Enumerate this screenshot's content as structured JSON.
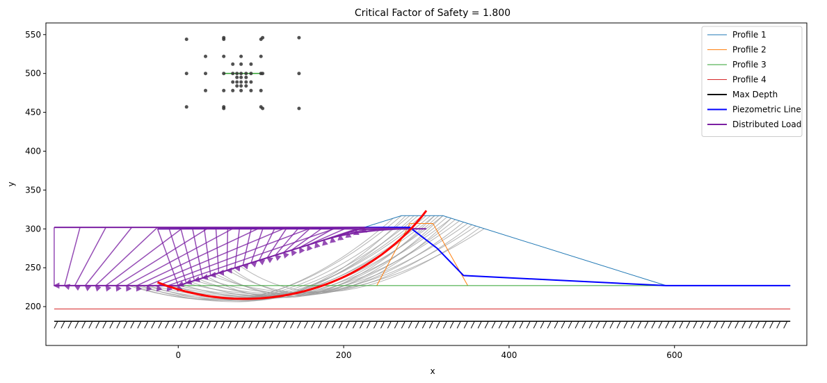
{
  "chart_data": {
    "type": "line",
    "title": "Critical Factor of Safety = 1.800",
    "xlabel": "x",
    "ylabel": "y",
    "xlim": [
      -160,
      760
    ],
    "ylim": [
      150,
      565
    ],
    "xticks": [
      0,
      200,
      400,
      600
    ],
    "xtick_labels": [
      "0",
      "200",
      "400",
      "600"
    ],
    "yticks": [
      200,
      250,
      300,
      350,
      400,
      450,
      500,
      550
    ],
    "ytick_labels": [
      "200",
      "250",
      "300",
      "350",
      "400",
      "450",
      "500",
      "550"
    ],
    "grid": false,
    "legend_position": "top-right",
    "colors": {
      "profile_1": "#1f77b4",
      "profile_2": "#ff7f0e",
      "profile_3": "#2ca02c",
      "profile_4": "#d62728",
      "max_depth": "#000000",
      "piezometric": "#0000ff",
      "distributed_load": "#7b1fa2",
      "trial_surface": "#999999",
      "critical_surface": "#ff0000",
      "grid_point": "#333333"
    },
    "legend": [
      {
        "key": "profile_1",
        "label": "Profile 1"
      },
      {
        "key": "profile_2",
        "label": "Profile 2"
      },
      {
        "key": "profile_3",
        "label": "Profile 3"
      },
      {
        "key": "profile_4",
        "label": "Profile 4"
      },
      {
        "key": "max_depth",
        "label": "Max Depth"
      },
      {
        "key": "piezometric",
        "label": "Piezometric Line"
      },
      {
        "key": "distributed_load",
        "label": "Distributed Load"
      }
    ],
    "series": [
      {
        "key": "profile_1",
        "x": [
          -150,
          0,
          270,
          320,
          590,
          740
        ],
        "y": [
          227,
          227,
          317,
          317,
          227,
          227
        ]
      },
      {
        "key": "profile_2",
        "x": [
          240,
          280,
          308,
          350
        ],
        "y": [
          227,
          307,
          307,
          227
        ]
      },
      {
        "key": "profile_3",
        "x": [
          -150,
          740
        ],
        "y": [
          227,
          227
        ]
      },
      {
        "key": "profile_4",
        "x": [
          -150,
          740
        ],
        "y": [
          197,
          197
        ]
      },
      {
        "key": "max_depth",
        "x": [
          -150,
          740
        ],
        "y": [
          181,
          181
        ]
      },
      {
        "key": "piezometric",
        "x": [
          -25,
          225,
          280,
          313,
          345,
          590,
          740
        ],
        "y": [
          300,
          302,
          302,
          275,
          240,
          227,
          227
        ]
      }
    ],
    "distributed_loads": [
      {
        "x_start": -150,
        "x_end": 225,
        "x_top": [
          -150,
          225
        ],
        "y_top": [
          302,
          302
        ],
        "x_bottom": [
          -150,
          0
        ],
        "y_bottom": [
          227,
          227
        ],
        "n_arrows": 13
      },
      {
        "x_start": -25,
        "x_end": 300,
        "x_top": [
          -25,
          300
        ],
        "y_top": [
          300,
          300
        ],
        "x_bottom": [
          0,
          225
        ],
        "y_bottom": [
          227,
          302
        ],
        "n_arrows": 24
      }
    ],
    "grid_points": [
      [
        10,
        544
      ],
      [
        55,
        546
      ],
      [
        55,
        544
      ],
      [
        100,
        544
      ],
      [
        102,
        546
      ],
      [
        146,
        546
      ],
      [
        33,
        522
      ],
      [
        55,
        522
      ],
      [
        76,
        522
      ],
      [
        100,
        522
      ],
      [
        66,
        512
      ],
      [
        76,
        512
      ],
      [
        88,
        512
      ],
      [
        10,
        500
      ],
      [
        33,
        500
      ],
      [
        55,
        500
      ],
      [
        66,
        500
      ],
      [
        71,
        500
      ],
      [
        76,
        500
      ],
      [
        82,
        500
      ],
      [
        88,
        500
      ],
      [
        100,
        500
      ],
      [
        102,
        500
      ],
      [
        146,
        500
      ],
      [
        71,
        495
      ],
      [
        76,
        495
      ],
      [
        82,
        495
      ],
      [
        66,
        489
      ],
      [
        71,
        489
      ],
      [
        76,
        489
      ],
      [
        82,
        489
      ],
      [
        88,
        489
      ],
      [
        71,
        484
      ],
      [
        76,
        484
      ],
      [
        82,
        484
      ],
      [
        33,
        478
      ],
      [
        55,
        478
      ],
      [
        66,
        478
      ],
      [
        76,
        478
      ],
      [
        88,
        478
      ],
      [
        100,
        478
      ],
      [
        10,
        457
      ],
      [
        55,
        457
      ],
      [
        55,
        455
      ],
      [
        100,
        457
      ],
      [
        102,
        455
      ],
      [
        146,
        455
      ]
    ],
    "critical_surface": {
      "center": [
        80,
        480
      ],
      "radius": 270,
      "x": [
        -25,
        300
      ],
      "factor_of_safety": 1.8
    },
    "trial_surfaces": [
      {
        "x1": -60,
        "x2": 270,
        "sag": 40
      },
      {
        "x1": -50,
        "x2": 280,
        "sag": 38
      },
      {
        "x1": -40,
        "x2": 290,
        "sag": 36
      },
      {
        "x1": -30,
        "x2": 300,
        "sag": 34
      },
      {
        "x1": -20,
        "x2": 310,
        "sag": 32
      },
      {
        "x1": -10,
        "x2": 320,
        "sag": 30
      },
      {
        "x1": 0,
        "x2": 330,
        "sag": 28
      },
      {
        "x1": 10,
        "x2": 340,
        "sag": 26
      },
      {
        "x1": 20,
        "x2": 350,
        "sag": 24
      },
      {
        "x1": 30,
        "x2": 360,
        "sag": 22
      },
      {
        "x1": 40,
        "x2": 370,
        "sag": 20
      },
      {
        "x1": -45,
        "x2": 295,
        "sag": 46
      },
      {
        "x1": -35,
        "x2": 305,
        "sag": 44
      },
      {
        "x1": -15,
        "x2": 285,
        "sag": 42
      },
      {
        "x1": 5,
        "x2": 315,
        "sag": 36
      },
      {
        "x1": 15,
        "x2": 325,
        "sag": 33
      },
      {
        "x1": 25,
        "x2": 335,
        "sag": 30
      },
      {
        "x1": 45,
        "x2": 345,
        "sag": 26
      },
      {
        "x1": 60,
        "x2": 355,
        "sag": 22
      },
      {
        "x1": 75,
        "x2": 365,
        "sag": 18
      },
      {
        "x1": -55,
        "x2": 260,
        "sag": 42
      },
      {
        "x1": -5,
        "x2": 275,
        "sag": 40
      },
      {
        "x1": 35,
        "x2": 310,
        "sag": 34
      },
      {
        "x1": 50,
        "x2": 320,
        "sag": 30
      },
      {
        "x1": 65,
        "x2": 330,
        "sag": 26
      }
    ]
  }
}
